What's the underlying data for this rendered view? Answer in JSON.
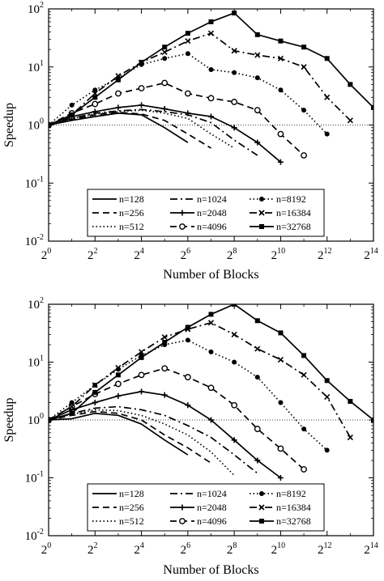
{
  "chart_data": [
    {
      "type": "line",
      "x_scale": "log2",
      "y_scale": "log10",
      "xlabel": "Number of Blocks",
      "ylabel": "Speedup",
      "xlim": [
        1,
        16384
      ],
      "ylim": [
        0.01,
        100
      ],
      "x_ticks": [
        {
          "base": "2",
          "exp": "0",
          "value": 1
        },
        {
          "base": "2",
          "exp": "2",
          "value": 4
        },
        {
          "base": "2",
          "exp": "4",
          "value": 16
        },
        {
          "base": "2",
          "exp": "6",
          "value": 64
        },
        {
          "base": "2",
          "exp": "8",
          "value": 256
        },
        {
          "base": "2",
          "exp": "10",
          "value": 1024
        },
        {
          "base": "2",
          "exp": "12",
          "value": 4096
        },
        {
          "base": "2",
          "exp": "14",
          "value": 16384
        }
      ],
      "y_ticks": [
        {
          "base": "10",
          "exp": "-2",
          "value": 0.01
        },
        {
          "base": "10",
          "exp": "-1",
          "value": 0.1
        },
        {
          "base": "10",
          "exp": "0",
          "value": 1
        },
        {
          "base": "10",
          "exp": "1",
          "value": 10
        },
        {
          "base": "10",
          "exp": "2",
          "value": 100
        }
      ],
      "reference_line_y": 1,
      "legend_position": "lower-center",
      "series": [
        {
          "name": "n=128",
          "style": "solid",
          "marker": "none",
          "x": [
            1,
            2,
            4,
            8,
            16,
            32,
            64
          ],
          "y": [
            1,
            1.2,
            1.4,
            1.6,
            1.5,
            0.9,
            0.5
          ]
        },
        {
          "name": "n=256",
          "style": "dashed",
          "marker": "none",
          "x": [
            1,
            2,
            4,
            8,
            16,
            32,
            64,
            128
          ],
          "y": [
            1,
            1.25,
            1.5,
            1.65,
            1.55,
            1.2,
            0.7,
            0.4
          ]
        },
        {
          "name": "n=512",
          "style": "dotted",
          "marker": "none",
          "x": [
            1,
            2,
            4,
            8,
            16,
            32,
            64,
            128,
            256
          ],
          "y": [
            1,
            1.3,
            1.55,
            1.7,
            1.8,
            1.6,
            1.3,
            0.7,
            0.4
          ]
        },
        {
          "name": "n=1024",
          "style": "dashdot",
          "marker": "none",
          "x": [
            1,
            2,
            4,
            8,
            16,
            32,
            64,
            128,
            256,
            512
          ],
          "y": [
            1,
            1.3,
            1.6,
            1.75,
            1.85,
            1.7,
            1.5,
            1.1,
            0.55,
            0.3
          ]
        },
        {
          "name": "n=2048",
          "style": "solid",
          "marker": "plus",
          "x": [
            1,
            2,
            4,
            8,
            16,
            32,
            64,
            128,
            256,
            512,
            1024
          ],
          "y": [
            1,
            1.4,
            1.7,
            2,
            2.2,
            1.9,
            1.6,
            1.4,
            0.9,
            0.5,
            0.23
          ]
        },
        {
          "name": "n=4096",
          "style": "dashed",
          "marker": "open-circle",
          "x": [
            1,
            2,
            4,
            8,
            16,
            32,
            64,
            128,
            256,
            512,
            1024,
            2048
          ],
          "y": [
            1,
            1.6,
            2.3,
            3.5,
            4.3,
            5.3,
            3.5,
            2.9,
            2.5,
            1.8,
            0.7,
            0.3
          ]
        },
        {
          "name": "n=8192",
          "style": "dotted",
          "marker": "filled-circle",
          "x": [
            1,
            2,
            4,
            8,
            16,
            32,
            64,
            128,
            256,
            512,
            1024,
            2048,
            4096
          ],
          "y": [
            1,
            2.2,
            4,
            6.5,
            11,
            14,
            17,
            9,
            8,
            6.5,
            4,
            1.8,
            0.7
          ]
        },
        {
          "name": "n=16384",
          "style": "dashdot",
          "marker": "x",
          "x": [
            1,
            2,
            4,
            8,
            16,
            32,
            64,
            128,
            256,
            512,
            1024,
            2048,
            4096,
            8192
          ],
          "y": [
            1,
            1.5,
            3.5,
            7,
            12,
            18,
            28,
            38,
            19,
            16,
            14,
            10,
            3,
            1.2
          ]
        },
        {
          "name": "n=32768",
          "style": "solid",
          "marker": "filled-square",
          "x": [
            1,
            2,
            4,
            8,
            16,
            32,
            64,
            128,
            256,
            512,
            1024,
            2048,
            4096,
            8192,
            16384
          ],
          "y": [
            1,
            1.5,
            3,
            6,
            12,
            22,
            38,
            60,
            85,
            36,
            28,
            22,
            14,
            5,
            2
          ]
        }
      ]
    },
    {
      "type": "line",
      "x_scale": "log2",
      "y_scale": "log10",
      "xlabel": "Number of Blocks",
      "ylabel": "Speedup",
      "xlim": [
        1,
        16384
      ],
      "ylim": [
        0.01,
        100
      ],
      "x_ticks": [
        {
          "base": "2",
          "exp": "0",
          "value": 1
        },
        {
          "base": "2",
          "exp": "2",
          "value": 4
        },
        {
          "base": "2",
          "exp": "4",
          "value": 16
        },
        {
          "base": "2",
          "exp": "6",
          "value": 64
        },
        {
          "base": "2",
          "exp": "8",
          "value": 256
        },
        {
          "base": "2",
          "exp": "10",
          "value": 1024
        },
        {
          "base": "2",
          "exp": "12",
          "value": 4096
        },
        {
          "base": "2",
          "exp": "14",
          "value": 16384
        }
      ],
      "y_ticks": [
        {
          "base": "10",
          "exp": "-2",
          "value": 0.01
        },
        {
          "base": "10",
          "exp": "-1",
          "value": 0.1
        },
        {
          "base": "10",
          "exp": "0",
          "value": 1
        },
        {
          "base": "10",
          "exp": "1",
          "value": 10
        },
        {
          "base": "10",
          "exp": "2",
          "value": 100
        }
      ],
      "reference_line_y": 1,
      "legend_position": "lower-center",
      "series": [
        {
          "name": "n=128",
          "style": "solid",
          "marker": "none",
          "x": [
            1,
            2,
            4,
            8,
            16,
            32,
            64
          ],
          "y": [
            1,
            1.05,
            1.3,
            1.2,
            0.85,
            0.45,
            0.25
          ]
        },
        {
          "name": "n=256",
          "style": "dashed",
          "marker": "none",
          "x": [
            1,
            2,
            4,
            8,
            16,
            32,
            64,
            128
          ],
          "y": [
            1,
            1.2,
            1.4,
            1.3,
            1,
            0.55,
            0.33,
            0.18
          ]
        },
        {
          "name": "n=512",
          "style": "dotted",
          "marker": "none",
          "x": [
            1,
            2,
            4,
            8,
            16,
            32,
            64,
            128,
            256
          ],
          "y": [
            1,
            1.25,
            1.5,
            1.45,
            1.2,
            0.85,
            0.55,
            0.28,
            0.11
          ]
        },
        {
          "name": "n=1024",
          "style": "dashdot",
          "marker": "none",
          "x": [
            1,
            2,
            4,
            8,
            16,
            32,
            64,
            128,
            256,
            512
          ],
          "y": [
            1,
            1.3,
            1.6,
            1.7,
            1.5,
            1.2,
            0.8,
            0.5,
            0.25,
            0.12
          ]
        },
        {
          "name": "n=2048",
          "style": "solid",
          "marker": "plus",
          "x": [
            1,
            2,
            4,
            8,
            16,
            32,
            64,
            128,
            256,
            512,
            1024
          ],
          "y": [
            1,
            1.5,
            2,
            2.6,
            3.1,
            2.7,
            1.8,
            1,
            0.45,
            0.2,
            0.1
          ]
        },
        {
          "name": "n=4096",
          "style": "dashed",
          "marker": "open-circle",
          "x": [
            1,
            2,
            4,
            8,
            16,
            32,
            64,
            128,
            256,
            512,
            1024,
            2048
          ],
          "y": [
            1,
            1.7,
            2.8,
            4.2,
            6,
            7.8,
            5.5,
            3.6,
            1.8,
            0.7,
            0.32,
            0.14
          ]
        },
        {
          "name": "n=8192",
          "style": "dotted",
          "marker": "filled-circle",
          "x": [
            1,
            2,
            4,
            8,
            16,
            32,
            64,
            128,
            256,
            512,
            1024,
            2048,
            4096
          ],
          "y": [
            1,
            2,
            4,
            7.5,
            13,
            20,
            24,
            15,
            10,
            5.5,
            2,
            0.7,
            0.3
          ]
        },
        {
          "name": "n=16384",
          "style": "dashdot",
          "marker": "x",
          "x": [
            1,
            2,
            4,
            8,
            16,
            32,
            64,
            128,
            256,
            512,
            1024,
            2048,
            4096,
            8192
          ],
          "y": [
            1,
            1.7,
            4,
            8,
            15,
            27,
            37,
            48,
            30,
            17,
            11,
            6,
            2.5,
            0.5
          ]
        },
        {
          "name": "n=32768",
          "style": "solid",
          "marker": "filled-square",
          "x": [
            1,
            2,
            4,
            8,
            16,
            32,
            64,
            128,
            256,
            512,
            1024,
            2048,
            4096,
            8192,
            16384
          ],
          "y": [
            1,
            1.3,
            3,
            6,
            12,
            22,
            40,
            67,
            100,
            52,
            32,
            13,
            4.8,
            2.1,
            1
          ]
        }
      ]
    }
  ]
}
